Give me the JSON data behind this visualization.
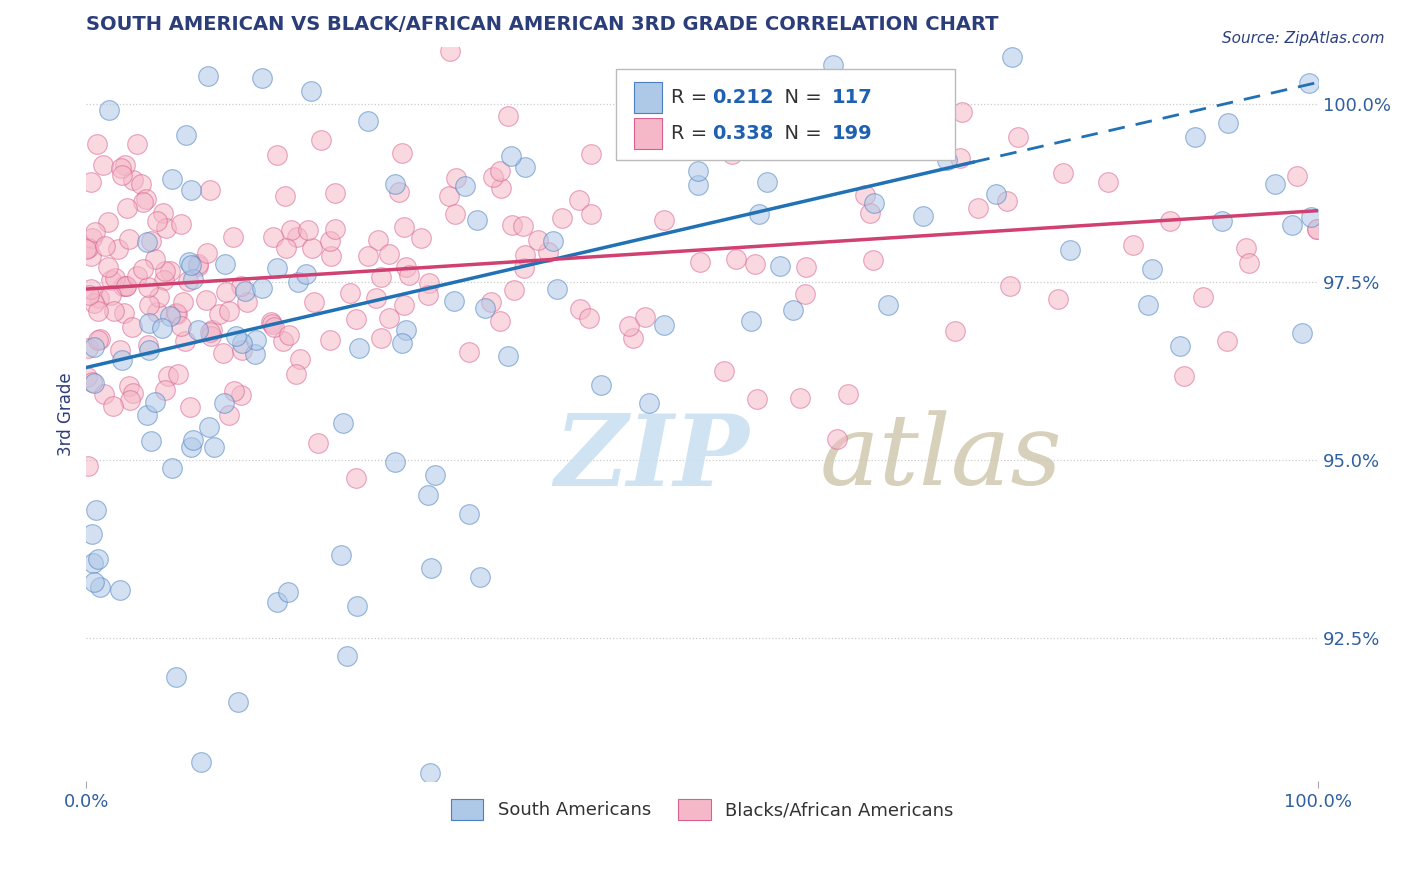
{
  "title": "SOUTH AMERICAN VS BLACK/AFRICAN AMERICAN 3RD GRADE CORRELATION CHART",
  "source": "Source: ZipAtlas.com",
  "ylabel": "3rd Grade",
  "xlim": [
    0.0,
    1.0
  ],
  "ylim": [
    0.905,
    1.008
  ],
  "yticks": [
    0.925,
    0.95,
    0.975,
    1.0
  ],
  "ytick_labels": [
    "92.5%",
    "95.0%",
    "97.5%",
    "100.0%"
  ],
  "xticks": [
    0.0,
    1.0
  ],
  "xtick_labels": [
    "0.0%",
    "100.0%"
  ],
  "blue_R": 0.212,
  "blue_N": 117,
  "pink_R": 0.338,
  "pink_N": 199,
  "blue_fill": "#aec8e8",
  "pink_fill": "#f5b8c8",
  "blue_edge": "#4a7fc0",
  "pink_edge": "#d86090",
  "blue_line_color": "#2171b5",
  "pink_line_color": "#d04070",
  "legend_label_blue": "South Americans",
  "legend_label_pink": "Blacks/African Americans",
  "title_color": "#2c3e7a",
  "source_color": "#2c4080",
  "axis_label_color": "#2c3e7a",
  "tick_color": "#3060a0",
  "stat_number_color": "#2060b0",
  "watermark_zip_color": "#c8dff0",
  "watermark_atlas_color": "#d0c8b0",
  "blue_seed": 7,
  "pink_seed": 13
}
